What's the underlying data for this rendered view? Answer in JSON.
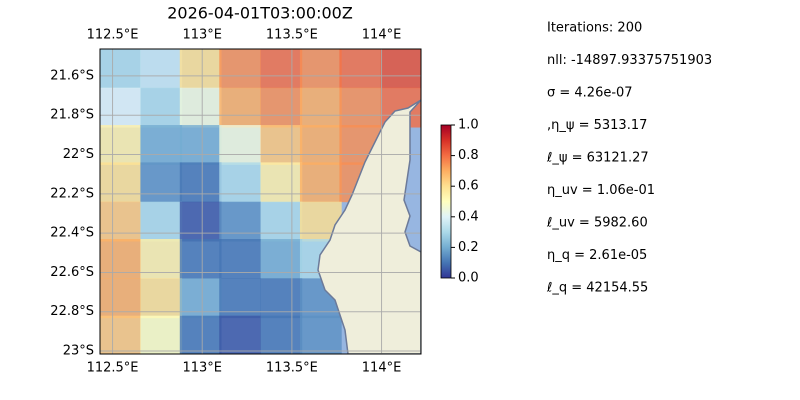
{
  "chart_data": {
    "type": "heatmap",
    "title": "2026-04-01T03:00:00Z",
    "xlim": [
      112.43,
      114.22
    ],
    "ylim": [
      -23.015,
      -21.463
    ],
    "xticks": [
      {
        "value": 112.5,
        "label": "112.5°E"
      },
      {
        "value": 113,
        "label": "113°E"
      },
      {
        "value": 113.5,
        "label": "113.5°E"
      },
      {
        "value": 114,
        "label": "114°E"
      }
    ],
    "yticks": [
      {
        "value": -21.6,
        "label": "21.6°S"
      },
      {
        "value": -21.8,
        "label": "21.8°S"
      },
      {
        "value": -22,
        "label": "22°S"
      },
      {
        "value": -22.2,
        "label": "22.2°S"
      },
      {
        "value": -22.4,
        "label": "22.4°S"
      },
      {
        "value": -22.6,
        "label": "22.6°S"
      },
      {
        "value": -22.8,
        "label": "22.8°S"
      },
      {
        "value": -23,
        "label": "23°S"
      }
    ],
    "grid": true,
    "x": [
      112.54,
      112.77,
      112.99,
      113.21,
      113.44,
      113.66,
      113.88,
      114.11
    ],
    "y": [
      -21.56,
      -21.76,
      -21.95,
      -22.14,
      -22.34,
      -22.53,
      -22.73,
      -22.92
    ],
    "z": [
      [
        0.3,
        0.35,
        0.6,
        0.75,
        0.8,
        0.75,
        0.8,
        0.85
      ],
      [
        0.4,
        0.3,
        0.45,
        0.7,
        0.75,
        0.7,
        0.75,
        0.8
      ],
      [
        0.55,
        0.2,
        0.2,
        0.45,
        0.65,
        0.7,
        0.75,
        null
      ],
      [
        0.6,
        0.15,
        0.1,
        0.3,
        0.55,
        0.7,
        0.75,
        null
      ],
      [
        0.65,
        0.3,
        0.05,
        0.15,
        0.3,
        0.6,
        null,
        null
      ],
      [
        0.7,
        0.55,
        0.1,
        0.1,
        0.2,
        0.3,
        null,
        null
      ],
      [
        0.7,
        0.6,
        0.2,
        0.1,
        0.1,
        0.15,
        null,
        null
      ],
      [
        0.65,
        0.5,
        0.1,
        0.05,
        0.1,
        0.15,
        null,
        null
      ]
    ],
    "clim": [
      0,
      1
    ],
    "cticks": [
      {
        "value": 0,
        "label": "0.0"
      },
      {
        "value": 0.2,
        "label": "0.2"
      },
      {
        "value": 0.4,
        "label": "0.4"
      },
      {
        "value": 0.6,
        "label": "0.6"
      },
      {
        "value": 0.8,
        "label": "0.8"
      },
      {
        "value": 1,
        "label": "1.0"
      }
    ],
    "annotations": [
      "Iterations: 200",
      "nll: -14897.93375751903",
      "σ = 4.26e-07",
      ",η_ψ = 5313.17",
      "ℓ_ψ = 63121.27",
      "η_uv = 1.06e-01",
      "ℓ_uv = 5982.60",
      "η_q = 2.61e-05",
      "ℓ_q = 42154.55"
    ]
  }
}
